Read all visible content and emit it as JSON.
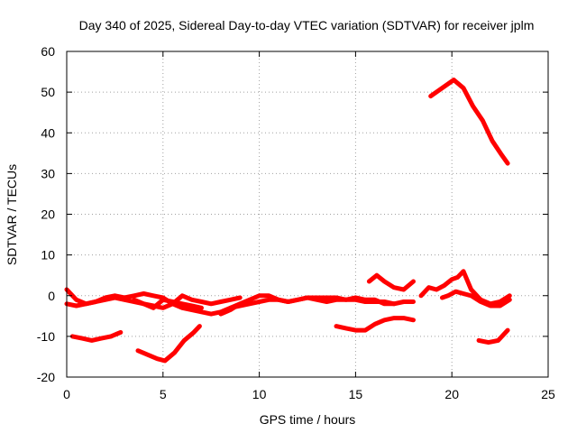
{
  "chart_data": {
    "type": "line",
    "title": "Day 340 of 2025, Sidereal Day-to-day VTEC variation (SDTVAR) for receiver jplm",
    "xlabel": "GPS time / hours",
    "ylabel": "SDTVAR / TECUs",
    "xlim": [
      0,
      25
    ],
    "ylim": [
      -20,
      60
    ],
    "xticks": [
      0,
      5,
      10,
      15,
      20,
      25
    ],
    "yticks": [
      -20,
      -10,
      0,
      10,
      20,
      30,
      40,
      50,
      60
    ],
    "xtick_labels": [
      "0",
      "5",
      "10",
      "15",
      "20",
      "25"
    ],
    "ytick_labels": [
      "-20",
      "-10",
      "0",
      "10",
      "20",
      "30",
      "40",
      "50",
      "60"
    ],
    "grid": true,
    "color": "#ff0000",
    "series": [
      {
        "name": "s1",
        "x": [
          0,
          0.5,
          1,
          1.5,
          2,
          2.5,
          3,
          3.5,
          4,
          4.5,
          5,
          5.5,
          6,
          6.5,
          7,
          7.5,
          8,
          8.5,
          9
        ],
        "y": [
          1.5,
          -1,
          -2,
          -1.5,
          -0.5,
          0,
          -0.5,
          0,
          0.5,
          0,
          -0.5,
          -2,
          -3,
          -3.5,
          -4,
          -4.5,
          -4,
          -3,
          -2
        ]
      },
      {
        "name": "s2",
        "x": [
          0,
          0.5,
          1,
          1.5,
          2,
          2.5,
          3,
          3.5,
          4,
          4.5,
          5,
          5.5,
          6,
          6.5,
          7,
          7.5,
          8,
          8.5,
          9
        ],
        "y": [
          -2,
          -2.5,
          -2,
          -1.5,
          -1,
          -0.5,
          -1,
          -1.5,
          -2,
          -2.5,
          -3,
          -2,
          0,
          -1,
          -1.5,
          -2,
          -1.5,
          -1,
          -0.5
        ]
      },
      {
        "name": "s3",
        "x": [
          3.5,
          4,
          4.5,
          5,
          5.5,
          6,
          6.5,
          7
        ],
        "y": [
          -1,
          -2,
          -3,
          -1,
          -1.5,
          -2,
          -2.5,
          -3
        ]
      },
      {
        "name": "s4",
        "x": [
          8,
          8.5,
          9,
          9.5,
          10,
          10.5,
          11,
          11.5,
          12,
          12.5,
          13,
          13.5,
          14,
          14.5,
          15,
          15.5,
          16,
          16.5,
          17,
          17.5,
          18
        ],
        "y": [
          -4.5,
          -3.5,
          -2,
          -1,
          0,
          0,
          -1,
          -1.5,
          -1,
          -0.5,
          -1,
          -1.5,
          -1,
          -1,
          -1,
          -1.5,
          -1.5,
          -1.5,
          -2,
          -1.5,
          -1.5
        ]
      },
      {
        "name": "s5",
        "x": [
          8.5,
          9,
          9.5,
          10,
          10.5,
          11,
          11.5,
          12,
          12.5,
          13,
          13.5,
          14,
          14.5,
          15,
          15.5,
          16,
          16.5,
          17
        ],
        "y": [
          -3,
          -2.5,
          -2,
          -1.5,
          -1,
          -1,
          -1.5,
          -1,
          -0.5,
          -0.5,
          -0.5,
          -0.5,
          -1,
          -0.5,
          -1,
          -1,
          -2,
          -2
        ]
      },
      {
        "name": "s6",
        "x": [
          0.3,
          0.8,
          1.3,
          1.8,
          2.3,
          2.8
        ],
        "y": [
          -10,
          -10.5,
          -11,
          -10.5,
          -10,
          -9
        ]
      },
      {
        "name": "s7",
        "x": [
          3.7,
          4.2,
          4.7,
          5.1,
          5.6,
          6.1,
          6.6,
          6.9
        ],
        "y": [
          -13.5,
          -14.5,
          -15.5,
          -16,
          -14,
          -11,
          -9,
          -7.5
        ]
      },
      {
        "name": "s8",
        "x": [
          14,
          14.5,
          15,
          15.5,
          16,
          16.5,
          17,
          17.5,
          18
        ],
        "y": [
          -7.5,
          -8,
          -8.5,
          -8.5,
          -7,
          -6,
          -5.5,
          -5.5,
          -6
        ]
      },
      {
        "name": "s9",
        "x": [
          15.7,
          16.1,
          16.5,
          17,
          17.5,
          18
        ],
        "y": [
          3.5,
          5,
          3.5,
          2,
          1.5,
          3.5
        ]
      },
      {
        "name": "s10",
        "x": [
          18.4,
          18.8,
          19.2,
          19.6,
          20,
          20.3,
          20.6,
          21,
          21.5,
          22,
          22.5,
          23
        ],
        "y": [
          0,
          2,
          1.5,
          2.5,
          4,
          4.5,
          6,
          1.5,
          -1,
          -2,
          -1.5,
          0
        ]
      },
      {
        "name": "s11",
        "x": [
          19.5,
          19.8,
          20.2,
          20.6,
          21,
          21.5,
          22,
          22.5,
          23
        ],
        "y": [
          -0.5,
          0,
          1,
          0.5,
          0,
          -1.5,
          -2.5,
          -2.5,
          -1
        ]
      },
      {
        "name": "s12",
        "x": [
          18.9,
          19.5,
          20.1,
          20.6,
          21.1,
          21.6,
          22.1,
          22.6,
          22.9
        ],
        "y": [
          49,
          51,
          53,
          51,
          46.5,
          43,
          38,
          34.5,
          32.5
        ]
      },
      {
        "name": "s13",
        "x": [
          21.4,
          21.9,
          22.4,
          22.9
        ],
        "y": [
          -11,
          -11.5,
          -11,
          -8.5
        ]
      }
    ]
  }
}
